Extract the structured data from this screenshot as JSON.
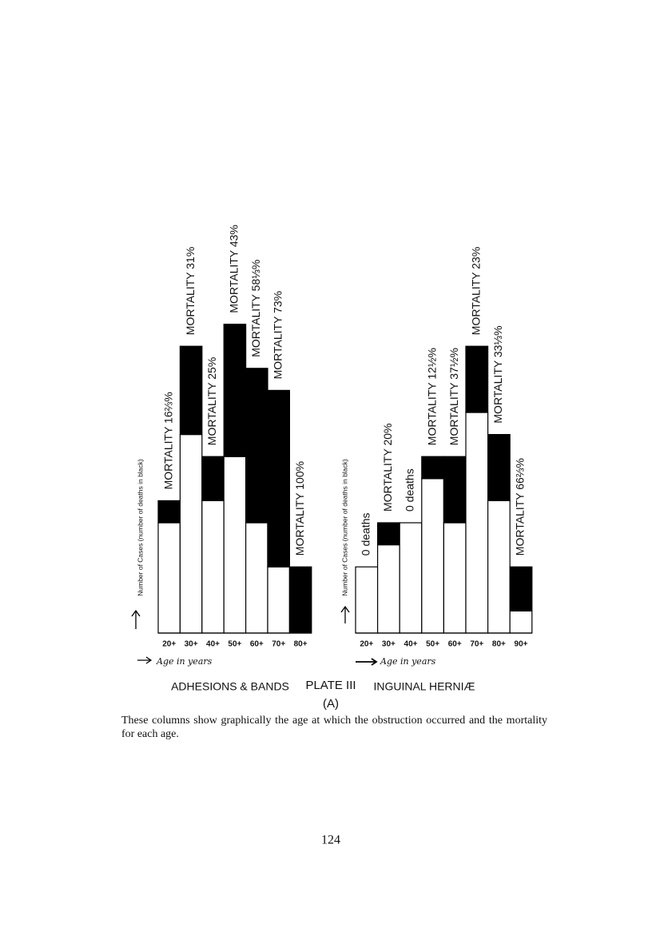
{
  "chart_data": [
    {
      "type": "bar",
      "stacked": true,
      "title": "ADHESIONS & BANDS",
      "y_label": "Number of Cases (number of deaths in black)",
      "x_label": "Age in years",
      "categories": [
        "20+",
        "30+",
        "40+",
        "50+",
        "60+",
        "70+",
        "80+"
      ],
      "series": [
        {
          "color": "#ffffff",
          "values": [
            5,
            9,
            6,
            8,
            5,
            3,
            0
          ]
        },
        {
          "color": "#000000",
          "values": [
            1,
            4,
            2,
            6,
            7,
            8,
            3
          ]
        }
      ],
      "annotations": [
        "MORTALITY 16⅔%",
        "MORTALITY 31%",
        "MORTALITY 25%",
        "MORTALITY 43%",
        "MORTALITY 58⅓%",
        "MORTALITY 73%",
        "MORTALITY 100%"
      ],
      "ylim": [
        0,
        14
      ]
    },
    {
      "type": "bar",
      "stacked": true,
      "title": "INGUINAL HERNIÆ",
      "y_label": "Number of Cases (number of deaths in black)",
      "x_label": "Age in years",
      "categories": [
        "20+",
        "30+",
        "40+",
        "50+",
        "60+",
        "70+",
        "80+",
        "90+"
      ],
      "series": [
        {
          "color": "#ffffff",
          "values": [
            3,
            4,
            5,
            7,
            5,
            10,
            6,
            1
          ]
        },
        {
          "color": "#000000",
          "values": [
            0,
            1,
            0,
            1,
            3,
            3,
            3,
            2
          ]
        }
      ],
      "annotations": [
        "0 deaths",
        "MORTALITY 20%",
        "0 deaths",
        "MORTALITY 12½%",
        "MORTALITY 37½%",
        "MORTALITY 23%",
        "MORTALITY 33⅓%",
        "MORTALITY 66⅔%"
      ],
      "ylim": [
        0,
        14
      ]
    }
  ],
  "plate": "PLATE III",
  "plate_sub": "(A)",
  "caption": "These columns show graphically the age at which the obstruction occurred and the mortality for each age.",
  "page_number": "124"
}
